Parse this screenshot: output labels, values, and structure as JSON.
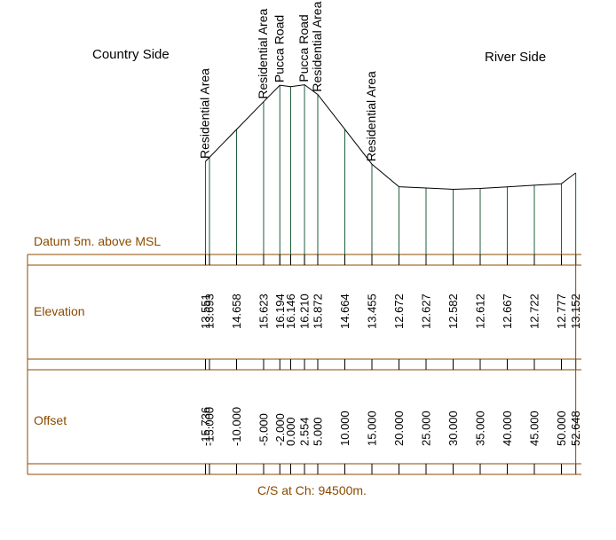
{
  "header": {
    "left_side_label": "Country Side",
    "right_side_label": "River Side"
  },
  "table": {
    "datum_label": "Datum 5m. above MSL",
    "elevation_label": "Elevation",
    "offset_label": "Offset"
  },
  "footer": {
    "caption": "C/S at Ch: 94500m."
  },
  "colors": {
    "frame": "#8B4A00",
    "ground": "#000000",
    "stations": "#1F5E3A",
    "text": "#000000"
  },
  "chart_data": {
    "type": "line",
    "offsets": [
      "-15.736",
      "-15.000",
      "-10.000",
      "-5.000",
      "-2.000",
      "0.000",
      "2.554",
      "5.000",
      "10.000",
      "15.000",
      "20.000",
      "25.000",
      "30.000",
      "35.000",
      "40.000",
      "45.000",
      "50.000",
      "52.648"
    ],
    "elevations": [
      "13.551",
      "13.693",
      "14.658",
      "15.623",
      "16.194",
      "16.146",
      "16.210",
      "15.872",
      "14.664",
      "13.455",
      "12.672",
      "12.627",
      "12.582",
      "12.612",
      "12.667",
      "12.722",
      "12.777",
      "13.152"
    ],
    "zone_labels": [
      {
        "offset": -15.736,
        "text": "Residential Area"
      },
      {
        "offset": -5.0,
        "text": "Residential Area"
      },
      {
        "offset": -2.0,
        "text": "Pucca Road"
      },
      {
        "offset": 2.554,
        "text": "Pucca Road"
      },
      {
        "offset": 5.0,
        "text": "Residential Area"
      },
      {
        "offset": 15.0,
        "text": "Residential Area"
      }
    ]
  }
}
